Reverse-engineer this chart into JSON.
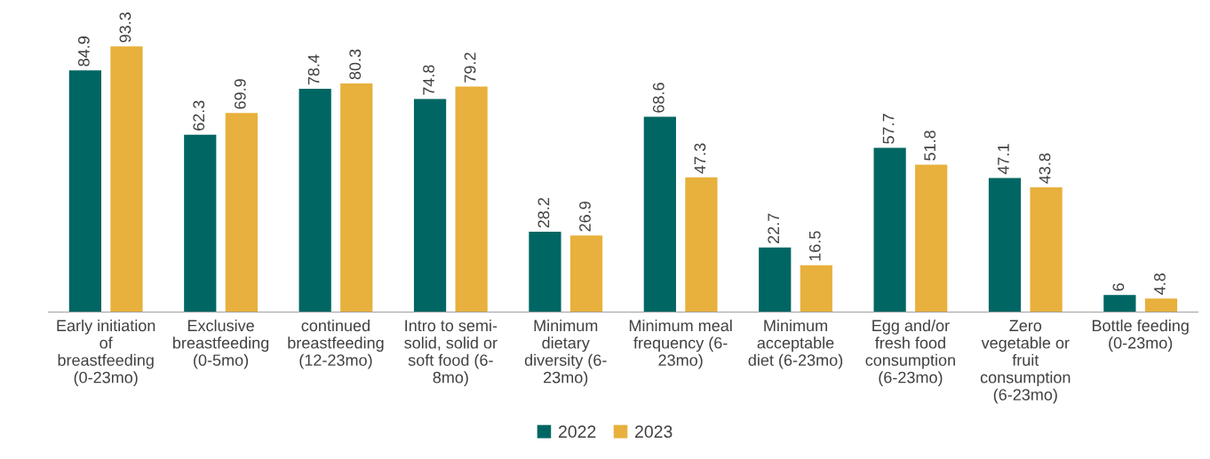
{
  "chart_data": {
    "type": "bar",
    "categories": [
      "Early initiation\nof\nbreastfeeding\n(0-23mo)",
      "Exclusive\nbreastfeeding\n(0-5mo)",
      "continued\nbreastfeeding\n(12-23mo)",
      "Intro to semi-\nsolid, solid or\nsoft food (6-\n8mo)",
      "Minimum\ndietary\ndiversity (6-\n23mo)",
      "Minimum meal\nfrequency (6-\n23mo)",
      "Minimum\nacceptable\ndiet (6-23mo)",
      "Egg and/or\nfresh food\nconsumption\n(6-23mo)",
      "Zero\nvegetable or\nfruit\nconsumption\n(6-23mo)",
      "Bottle feeding\n(0-23mo)"
    ],
    "series": [
      {
        "name": "2022",
        "color": "#006663",
        "values": [
          84.9,
          62.3,
          78.4,
          74.8,
          28.2,
          68.6,
          22.7,
          57.7,
          47.1,
          6
        ]
      },
      {
        "name": "2023",
        "color": "#e8b03c",
        "values": [
          93.3,
          69.9,
          80.3,
          79.2,
          26.9,
          47.3,
          16.5,
          51.8,
          43.8,
          4.8
        ]
      }
    ],
    "data_labels": true,
    "legend": "bottom",
    "grid": false,
    "tick_labels": "x"
  }
}
